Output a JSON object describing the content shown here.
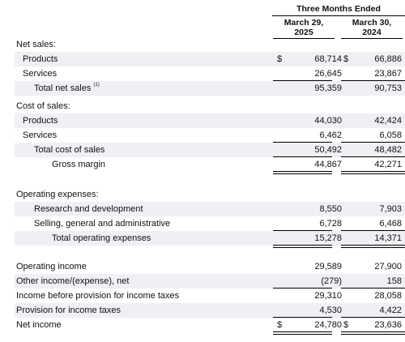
{
  "header": {
    "period_title": "Three Months Ended",
    "col1_line1": "March 29,",
    "col1_line2": "2025",
    "col2_line1": "March 30,",
    "col2_line2": "2024"
  },
  "footnote_marker": "(1)",
  "rows": [
    {
      "id": "net-sales-heading",
      "label": "Net sales:"
    },
    {
      "id": "net-sales-products",
      "label": "Products",
      "dollar": "$",
      "v2025": "68,714",
      "v2024": "66,886"
    },
    {
      "id": "net-sales-services",
      "label": "Services",
      "v2025": "26,645",
      "v2024": "23,867"
    },
    {
      "id": "total-net-sales",
      "label": "Total net sales",
      "v2025": "95,359",
      "v2024": "90,753"
    },
    {
      "id": "cost-of-sales-heading",
      "label": "Cost of sales:"
    },
    {
      "id": "cost-products",
      "label": "Products",
      "v2025": "44,030",
      "v2024": "42,424"
    },
    {
      "id": "cost-services",
      "label": "Services",
      "v2025": "6,462",
      "v2024": "6,058"
    },
    {
      "id": "total-cost-of-sales",
      "label": "Total cost of sales",
      "v2025": "50,492",
      "v2024": "48,482"
    },
    {
      "id": "gross-margin",
      "label": "Gross margin",
      "v2025": "44,867",
      "v2024": "42,271"
    },
    {
      "id": "operating-expenses-heading",
      "label": "Operating expenses:"
    },
    {
      "id": "research-development",
      "label": "Research and development",
      "v2025": "8,550",
      "v2024": "7,903"
    },
    {
      "id": "selling-general-admin",
      "label": "Selling, general and administrative",
      "v2025": "6,728",
      "v2024": "6,468"
    },
    {
      "id": "total-operating-expenses",
      "label": "Total operating expenses",
      "v2025": "15,278",
      "v2024": "14,371"
    },
    {
      "id": "operating-income",
      "label": "Operating income",
      "v2025": "29,589",
      "v2024": "27,900"
    },
    {
      "id": "other-income-expense",
      "label": "Other income/(expense), net",
      "v2025": "(279)",
      "v2024": "158"
    },
    {
      "id": "income-before-taxes",
      "label": "Income before provision for income taxes",
      "v2025": "29,310",
      "v2024": "28,058"
    },
    {
      "id": "provision-income-taxes",
      "label": "Provision for income taxes",
      "v2025": "4,530",
      "v2024": "4,422"
    },
    {
      "id": "net-income",
      "label": "Net income",
      "dollar": "$",
      "v2025": "24,780",
      "v2024": "23,636"
    }
  ]
}
